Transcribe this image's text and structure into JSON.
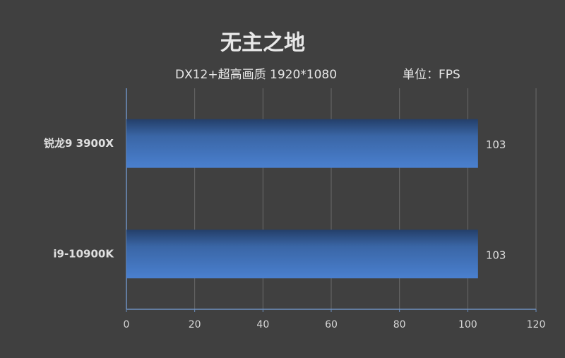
{
  "chart_data": {
    "type": "bar",
    "orientation": "horizontal",
    "title": "无主之地",
    "subtitle": "DX12+超高画质  1920*1080",
    "unit_label": "单位：FPS",
    "categories": [
      "锐龙9 3900X",
      "i9-10900K"
    ],
    "values": [
      103,
      103
    ],
    "color": "#3f6fb5",
    "xlim": [
      0,
      120
    ],
    "xticks": [
      0,
      20,
      40,
      60,
      80,
      100,
      120
    ],
    "grid": true
  }
}
